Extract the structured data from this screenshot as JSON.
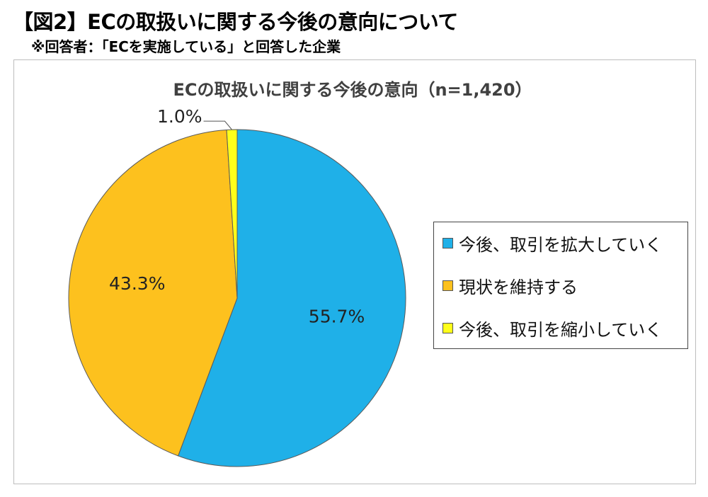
{
  "figure": {
    "heading": "【図2】ECの取扱いに関する今後の意向について",
    "subheading": "※回答者：「ECを実施している」と回答した企業"
  },
  "chart_data": {
    "type": "pie",
    "title": "ECの取扱いに関する今後の意向（n=1,420）",
    "categories": [
      "今後、取引を拡大していく",
      "現状を維持する",
      "今後、取引を縮小していく"
    ],
    "values": [
      55.7,
      43.3,
      1.0
    ],
    "data_labels": [
      "55.7%",
      "43.3%",
      "1.0%"
    ],
    "colors": [
      "#1fb0e8",
      "#fdc11e",
      "#ffff1a"
    ],
    "legend_position": "right",
    "start_angle_deg": 0,
    "direction": "clockwise"
  }
}
